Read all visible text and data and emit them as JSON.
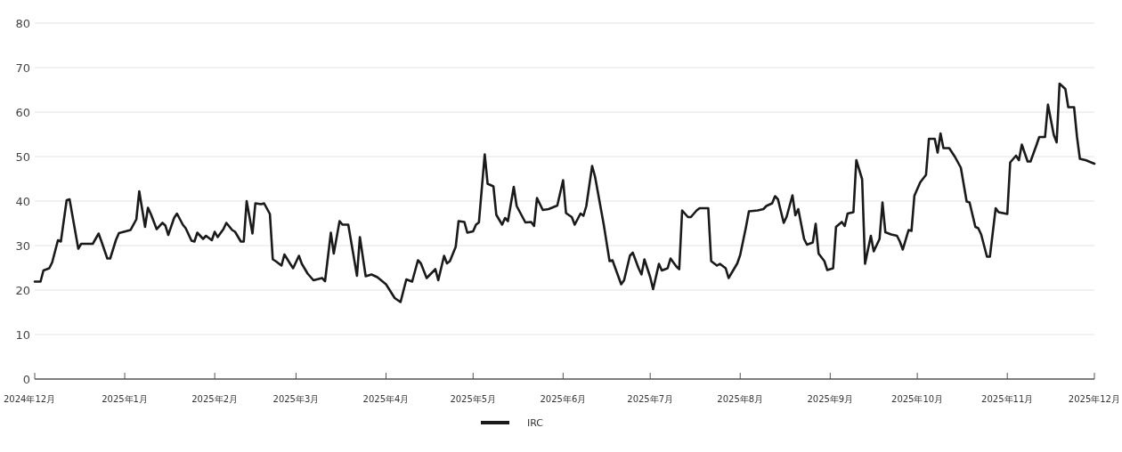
{
  "chart_data": {
    "type": "line",
    "xlim": [
      "2024-12-01",
      "2025-12-01"
    ],
    "ylim": [
      0,
      80
    ],
    "xticks": [
      {
        "value": "2024-12-01",
        "label": "2024年12月"
      },
      {
        "value": "2025-01-01",
        "label": "2025年1月"
      },
      {
        "value": "2025-02-01",
        "label": "2025年2月"
      },
      {
        "value": "2025-03-01",
        "label": "2025年3月"
      },
      {
        "value": "2025-04-01",
        "label": "2025年4月"
      },
      {
        "value": "2025-05-01",
        "label": "2025年5月"
      },
      {
        "value": "2025-06-01",
        "label": "2025年6月"
      },
      {
        "value": "2025-07-01",
        "label": "2025年7月"
      },
      {
        "value": "2025-08-01",
        "label": "2025年8月"
      },
      {
        "value": "2025-09-01",
        "label": "2025年9月"
      },
      {
        "value": "2025-10-01",
        "label": "2025年10月"
      },
      {
        "value": "2025-11-01",
        "label": "2025年11月"
      },
      {
        "value": "2025-12-01",
        "label": "2025年12月"
      }
    ],
    "yticks": [
      0,
      10,
      20,
      30,
      40,
      50,
      60,
      70,
      80
    ],
    "grid": "y",
    "legend": "bottom",
    "marker": "none",
    "line_style": "solid",
    "x": [
      "2024-12-01",
      "2024-12-03",
      "2024-12-04",
      "2024-12-06",
      "2024-12-07",
      "2024-12-09",
      "2024-12-10",
      "2024-12-12",
      "2024-12-13",
      "2024-12-16",
      "2024-12-17",
      "2024-12-21",
      "2024-12-23",
      "2024-12-24",
      "2024-12-26",
      "2024-12-27",
      "2024-12-29",
      "2024-12-30",
      "2025-01-03",
      "2025-01-05",
      "2025-01-06",
      "2025-01-08",
      "2025-01-09",
      "2025-01-10",
      "2025-01-12",
      "2025-01-14",
      "2025-01-15",
      "2025-01-16",
      "2025-01-18",
      "2025-01-19",
      "2025-01-21",
      "2025-01-22",
      "2025-01-24",
      "2025-01-25",
      "2025-01-26",
      "2025-01-28",
      "2025-01-29",
      "2025-01-31",
      "2025-02-01",
      "2025-02-02",
      "2025-02-04",
      "2025-02-05",
      "2025-02-07",
      "2025-02-08",
      "2025-02-10",
      "2025-02-11",
      "2025-02-12",
      "2025-02-14",
      "2025-02-15",
      "2025-02-17",
      "2025-02-18",
      "2025-02-20",
      "2025-02-21",
      "2025-02-22",
      "2025-02-24",
      "2025-02-25",
      "2025-02-27",
      "2025-02-28",
      "2025-03-02",
      "2025-03-03",
      "2025-03-05",
      "2025-03-07",
      "2025-03-10",
      "2025-03-11",
      "2025-03-13",
      "2025-03-14",
      "2025-03-16",
      "2025-03-17",
      "2025-03-19",
      "2025-03-22",
      "2025-03-23",
      "2025-03-25",
      "2025-03-27",
      "2025-03-29",
      "2025-04-01",
      "2025-04-04",
      "2025-04-06",
      "2025-04-08",
      "2025-04-10",
      "2025-04-12",
      "2025-04-13",
      "2025-04-15",
      "2025-04-18",
      "2025-04-19",
      "2025-04-21",
      "2025-04-22",
      "2025-04-23",
      "2025-04-25",
      "2025-04-26",
      "2025-04-28",
      "2025-04-29",
      "2025-05-01",
      "2025-05-02",
      "2025-05-03",
      "2025-05-05",
      "2025-05-06",
      "2025-05-08",
      "2025-05-09",
      "2025-05-11",
      "2025-05-12",
      "2025-05-13",
      "2025-05-15",
      "2025-05-16",
      "2025-05-19",
      "2025-05-21",
      "2025-05-22",
      "2025-05-23",
      "2025-05-25",
      "2025-05-27",
      "2025-05-30",
      "2025-06-01",
      "2025-06-02",
      "2025-06-04",
      "2025-06-05",
      "2025-06-07",
      "2025-06-08",
      "2025-06-09",
      "2025-06-11",
      "2025-06-12",
      "2025-06-15",
      "2025-06-17",
      "2025-06-18",
      "2025-06-19",
      "2025-06-21",
      "2025-06-22",
      "2025-06-24",
      "2025-06-25",
      "2025-06-27",
      "2025-06-28",
      "2025-06-29",
      "2025-07-01",
      "2025-07-02",
      "2025-07-04",
      "2025-07-05",
      "2025-07-07",
      "2025-07-08",
      "2025-07-10",
      "2025-07-11",
      "2025-07-12",
      "2025-07-14",
      "2025-07-15",
      "2025-07-17",
      "2025-07-18",
      "2025-07-21",
      "2025-07-22",
      "2025-07-24",
      "2025-07-25",
      "2025-07-27",
      "2025-07-28",
      "2025-07-30",
      "2025-07-31",
      "2025-08-01",
      "2025-08-03",
      "2025-08-04",
      "2025-08-07",
      "2025-08-09",
      "2025-08-10",
      "2025-08-12",
      "2025-08-13",
      "2025-08-14",
      "2025-08-16",
      "2025-08-17",
      "2025-08-19",
      "2025-08-20",
      "2025-08-21",
      "2025-08-23",
      "2025-08-24",
      "2025-08-26",
      "2025-08-27",
      "2025-08-28",
      "2025-08-30",
      "2025-08-31",
      "2025-09-02",
      "2025-09-03",
      "2025-09-05",
      "2025-09-06",
      "2025-09-07",
      "2025-09-09",
      "2025-09-10",
      "2025-09-12",
      "2025-09-13",
      "2025-09-15",
      "2025-09-16",
      "2025-09-18",
      "2025-09-19",
      "2025-09-20",
      "2025-09-22",
      "2025-09-24",
      "2025-09-25",
      "2025-09-26",
      "2025-09-28",
      "2025-09-29",
      "2025-09-30",
      "2025-10-02",
      "2025-10-04",
      "2025-10-05",
      "2025-10-07",
      "2025-10-08",
      "2025-10-09",
      "2025-10-10",
      "2025-10-12",
      "2025-10-14",
      "2025-10-16",
      "2025-10-18",
      "2025-10-19",
      "2025-10-21",
      "2025-10-22",
      "2025-10-23",
      "2025-10-25",
      "2025-10-26",
      "2025-10-28",
      "2025-10-29",
      "2025-11-01",
      "2025-11-02",
      "2025-11-04",
      "2025-11-05",
      "2025-11-06",
      "2025-11-08",
      "2025-11-09",
      "2025-11-11",
      "2025-11-12",
      "2025-11-14",
      "2025-11-15",
      "2025-11-17",
      "2025-11-18",
      "2025-11-19",
      "2025-11-21",
      "2025-11-22",
      "2025-11-24",
      "2025-11-25",
      "2025-11-26",
      "2025-11-28",
      "2025-12-01"
    ],
    "series": [
      {
        "name": "IRC",
        "color": "#1a1a1a",
        "values": [
          21.9,
          21.9,
          24.4,
          24.9,
          26.2,
          31.2,
          30.9,
          40.2,
          40.4,
          29.3,
          30.4,
          30.4,
          32.7,
          30.9,
          27.1,
          27.1,
          31.3,
          32.8,
          33.5,
          35.9,
          42.2,
          34.2,
          38.5,
          37.1,
          33.7,
          35.1,
          34.5,
          32.4,
          36.2,
          37.2,
          34.7,
          33.9,
          31.1,
          30.9,
          32.9,
          31.5,
          32.2,
          31.2,
          33.1,
          31.9,
          33.7,
          35.1,
          33.5,
          33.1,
          30.9,
          30.9,
          40.0,
          32.7,
          39.5,
          39.3,
          39.5,
          37.1,
          26.9,
          26.5,
          25.5,
          28.0,
          25.9,
          24.9,
          27.7,
          25.9,
          23.7,
          22.2,
          22.7,
          22.0,
          32.9,
          28.2,
          35.5,
          34.7,
          34.7,
          23.2,
          31.9,
          23.1,
          23.5,
          22.9,
          21.3,
          18.2,
          17.3,
          22.4,
          21.9,
          26.7,
          26.0,
          22.7,
          24.7,
          22.2,
          27.7,
          26.0,
          26.5,
          29.7,
          35.5,
          35.3,
          32.9,
          33.2,
          34.7,
          35.2,
          50.5,
          43.9,
          43.3,
          36.9,
          34.7,
          36.2,
          35.5,
          43.2,
          38.9,
          35.2,
          35.3,
          34.4,
          40.7,
          38.0,
          38.2,
          39.0,
          44.7,
          37.3,
          36.4,
          34.7,
          37.2,
          36.7,
          38.9,
          47.9,
          45.5,
          34.7,
          26.5,
          26.7,
          24.9,
          21.3,
          22.2,
          27.7,
          28.4,
          24.9,
          23.5,
          26.9,
          22.9,
          20.2,
          25.9,
          24.4,
          24.9,
          27.1,
          25.3,
          24.7,
          37.9,
          36.4,
          36.4,
          37.9,
          38.4,
          38.4,
          26.5,
          25.5,
          25.9,
          24.9,
          22.7,
          24.9,
          26.0,
          27.9,
          34.2,
          37.7,
          37.9,
          38.2,
          38.9,
          39.5,
          41.1,
          40.4,
          35.1,
          36.5,
          41.3,
          36.8,
          38.2,
          31.5,
          30.2,
          30.7,
          34.9,
          28.2,
          26.5,
          24.5,
          24.9,
          34.2,
          35.3,
          34.4,
          37.2,
          37.5,
          49.2,
          44.9,
          25.9,
          32.2,
          28.7,
          31.5,
          39.7,
          33.0,
          32.5,
          32.2,
          30.9,
          29.1,
          33.5,
          33.3,
          41.2,
          44.2,
          45.9,
          54.0,
          54.0,
          50.9,
          55.2,
          51.9,
          51.9,
          49.9,
          47.5,
          39.9,
          39.7,
          34.2,
          33.9,
          32.5,
          27.5,
          27.5,
          38.4,
          37.5,
          37.1,
          48.7,
          50.2,
          49.2,
          52.7,
          48.9,
          48.9,
          52.5,
          54.4,
          54.4,
          61.7,
          54.9,
          53.2,
          66.4,
          65.2,
          61.1,
          61.1,
          54.5,
          49.5,
          49.2,
          48.4
        ]
      }
    ]
  }
}
